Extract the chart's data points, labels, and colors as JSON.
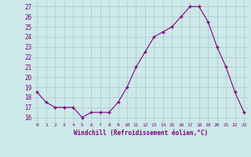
{
  "x": [
    0,
    1,
    2,
    3,
    4,
    5,
    6,
    7,
    8,
    9,
    10,
    11,
    12,
    13,
    14,
    15,
    16,
    17,
    18,
    19,
    20,
    21,
    22,
    23
  ],
  "y": [
    18.5,
    17.5,
    17.0,
    17.0,
    17.0,
    16.0,
    16.5,
    16.5,
    16.5,
    17.5,
    19.0,
    21.0,
    22.5,
    24.0,
    24.5,
    25.0,
    26.0,
    27.0,
    27.0,
    25.5,
    23.0,
    21.0,
    18.5,
    16.5
  ],
  "line_color": "#800080",
  "marker": "+",
  "marker_color": "#800080",
  "bg_color": "#cce8e8",
  "grid_color": "#aac8c8",
  "xlabel": "Windchill (Refroidissement éolien,°C)",
  "xlabel_color": "#800080",
  "tick_color": "#800080",
  "ylim": [
    15.5,
    27.5
  ],
  "xlim": [
    -0.5,
    23.5
  ],
  "yticks": [
    16,
    17,
    18,
    19,
    20,
    21,
    22,
    23,
    24,
    25,
    26,
    27
  ],
  "xticks": [
    0,
    1,
    2,
    3,
    4,
    5,
    6,
    7,
    8,
    9,
    10,
    11,
    12,
    13,
    14,
    15,
    16,
    17,
    18,
    19,
    20,
    21,
    22,
    23
  ]
}
